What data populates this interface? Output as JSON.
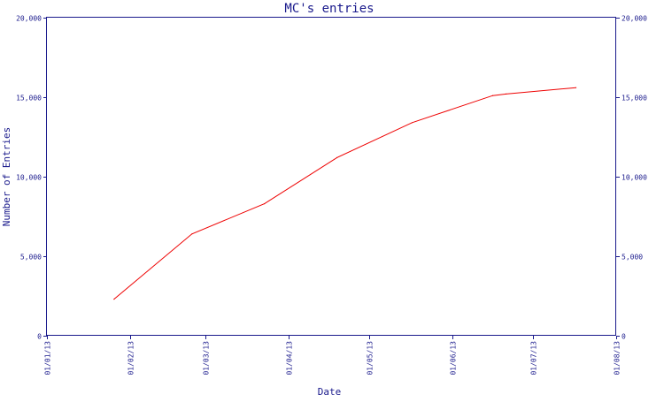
{
  "chart_data": {
    "type": "line",
    "title": "MC's entries",
    "xlabel": "Date",
    "ylabel": "Number of Entries",
    "x_ticks": [
      "01/01/13",
      "01/02/13",
      "01/03/13",
      "01/04/13",
      "01/05/13",
      "01/06/13",
      "01/07/13",
      "01/08/13"
    ],
    "y_ticks": [
      "0",
      "5,000",
      "10,000",
      "15,000",
      "20,000"
    ],
    "y_tick_values": [
      0,
      5000,
      10000,
      15000,
      20000
    ],
    "xlim": [
      "2013-01-01",
      "2013-08-01"
    ],
    "ylim": [
      0,
      20000
    ],
    "grid": false,
    "right_axis": true,
    "series": [
      {
        "color": "#ee0000",
        "x": [
          "2013-01-26",
          "2013-02-24",
          "2013-03-23",
          "2013-04-19",
          "2013-05-17",
          "2013-06-16",
          "2013-06-21",
          "2013-07-17"
        ],
        "y": [
          2300,
          6400,
          8300,
          11200,
          13400,
          15100,
          15200,
          15600
        ]
      }
    ]
  }
}
